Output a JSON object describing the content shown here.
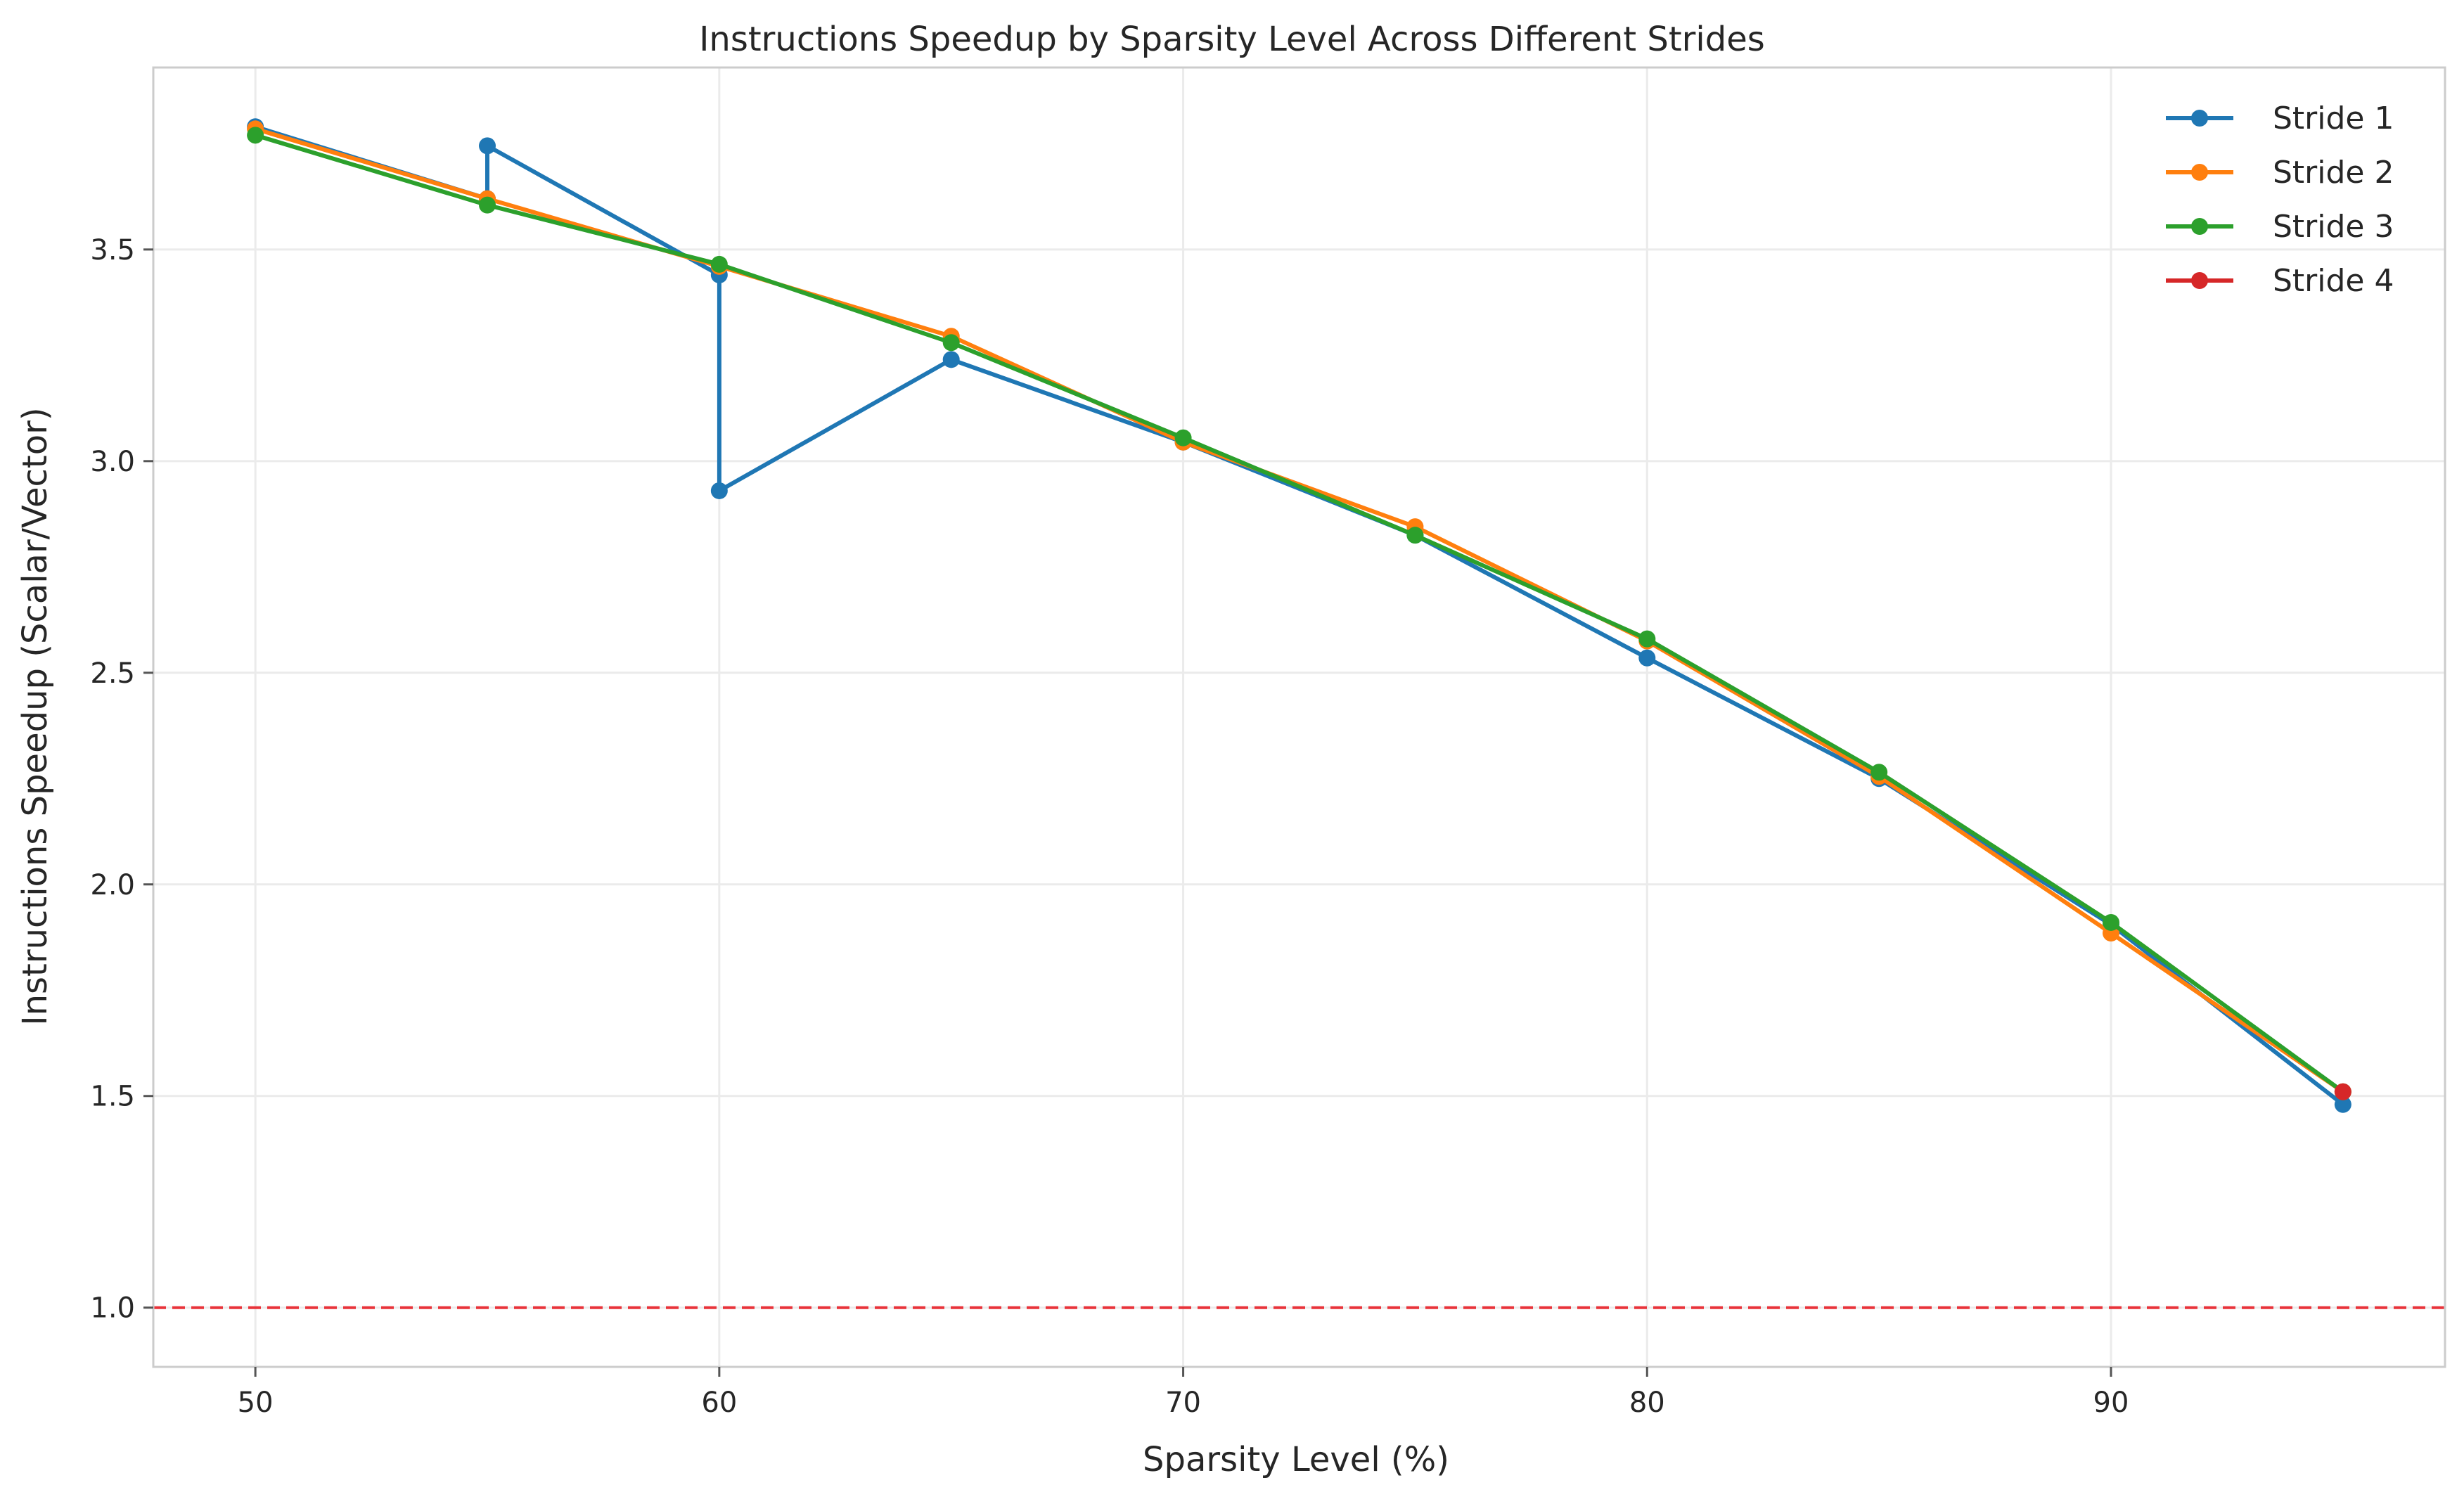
{
  "chart_data": {
    "type": "line",
    "title": "Instructions Speedup by Sparsity Level Across Different Strides",
    "xlabel": "Sparsity Level (%)",
    "ylabel": "Instructions Speedup (Scalar/Vector)",
    "xlim": [
      47.8,
      97.2
    ],
    "ylim": [
      0.86,
      3.93
    ],
    "xticks": [
      "50",
      "60",
      "70",
      "80",
      "90"
    ],
    "xtick_values": [
      50,
      60,
      70,
      80,
      90
    ],
    "yticks": [
      "1.0",
      "1.5",
      "2.0",
      "2.5",
      "3.0",
      "3.5"
    ],
    "ytick_values": [
      1.0,
      1.5,
      2.0,
      2.5,
      3.0,
      3.5
    ],
    "grid": true,
    "legend_position": "top-right",
    "reference_line": {
      "y": 1.0,
      "color": "#e8333a",
      "style": "dashed"
    },
    "series": [
      {
        "name": "Stride 1",
        "color": "#1f77b4",
        "x": [
          50,
          55,
          55,
          60,
          60,
          65,
          70,
          75,
          80,
          85,
          90,
          95
        ],
        "y": [
          3.79,
          3.62,
          3.745,
          3.44,
          2.93,
          3.24,
          3.045,
          2.825,
          2.535,
          2.25,
          1.905,
          1.48
        ]
      },
      {
        "name": "Stride 2",
        "color": "#ff7f0e",
        "x": [
          50,
          55,
          60,
          65,
          70,
          75,
          80,
          85,
          90,
          95
        ],
        "y": [
          3.785,
          3.62,
          3.46,
          3.295,
          3.045,
          2.845,
          2.575,
          2.255,
          1.885,
          1.51
        ]
      },
      {
        "name": "Stride 3",
        "color": "#2ca02c",
        "x": [
          50,
          55,
          60,
          65,
          70,
          75,
          80,
          85,
          90,
          95
        ],
        "y": [
          3.77,
          3.605,
          3.465,
          3.28,
          3.055,
          2.825,
          2.58,
          2.265,
          1.91,
          1.51
        ]
      },
      {
        "name": "Stride 4",
        "color": "#d62728",
        "x": [
          95
        ],
        "y": [
          1.51
        ]
      }
    ]
  }
}
